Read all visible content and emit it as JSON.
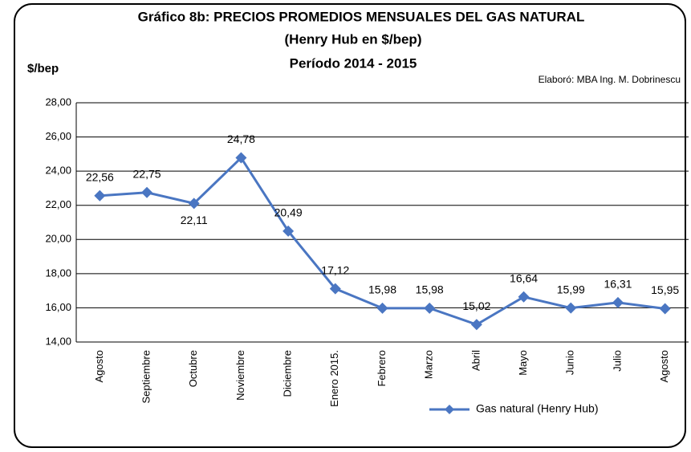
{
  "chart_data": {
    "type": "line",
    "title": "Gráfico 8b: PRECIOS PROMEDIOS MENSUALES DEL GAS NATURAL",
    "subtitle": "(Henry Hub en $/bep)",
    "period": "Período 2014 - 2015",
    "y_label": "$/bep",
    "annotation": "Elaboró: MBA Ing. M. Dobrinescu",
    "categories": [
      "Agosto",
      "Septiembre",
      "Octubre",
      "Noviembre",
      "Diciembre",
      "Enero 2015.",
      "Febrero",
      "Marzo",
      "Abril",
      "Mayo",
      "Junio",
      "Julio",
      "Agosto"
    ],
    "series": [
      {
        "name": "Gas natural (Henry Hub)",
        "color": "#4a76c2",
        "values": [
          22.56,
          22.75,
          22.11,
          24.78,
          20.49,
          17.12,
          15.98,
          15.98,
          15.02,
          16.64,
          15.99,
          16.31,
          15.95
        ],
        "value_labels": [
          "22,56",
          "22,75",
          "22,11",
          "24,78",
          "20,49",
          "17,12",
          "15,98",
          "15,98",
          "15,02",
          "16,64",
          "15,99",
          "16,31",
          "15,95"
        ]
      }
    ],
    "ylim": [
      14,
      28
    ],
    "yticks": [
      {
        "value": 14,
        "label": "14,00"
      },
      {
        "value": 16,
        "label": "16,00"
      },
      {
        "value": 18,
        "label": "18,00"
      },
      {
        "value": 20,
        "label": "20,00"
      },
      {
        "value": 22,
        "label": "22,00"
      },
      {
        "value": 24,
        "label": "24,00"
      },
      {
        "value": 26,
        "label": "26,00"
      },
      {
        "value": 28,
        "label": "28,00"
      }
    ],
    "grid": true
  }
}
